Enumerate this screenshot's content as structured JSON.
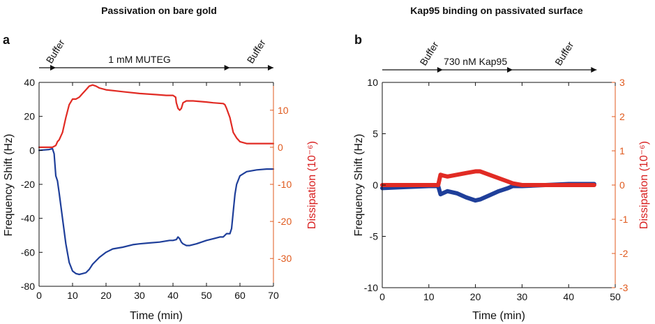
{
  "chart_data": [
    {
      "type": "line",
      "panel": "a",
      "title": "Passivation on bare gold",
      "xlabel": "Time (min)",
      "ylabel": "Frequency Shift (Hz)",
      "y2label": "Dissipation (10⁻⁶)",
      "xlim": [
        0,
        70
      ],
      "ylim": [
        -80,
        40
      ],
      "y2lim": [
        -37.5,
        17.5
      ],
      "xticks": [
        0,
        10,
        20,
        30,
        40,
        50,
        60,
        70
      ],
      "yticks": [
        -80,
        -60,
        -40,
        -20,
        0,
        20,
        40
      ],
      "y2ticks": [
        -30,
        -20,
        -10,
        0,
        10
      ],
      "grid": false,
      "annotations": [
        {
          "label": "Buffer",
          "x": 2,
          "rotated": true
        },
        {
          "label": "1 mM MUTEG",
          "x": 30,
          "rotated": false
        },
        {
          "label": "Buffer",
          "x": 62,
          "rotated": true
        }
      ],
      "arrow": {
        "start": 0,
        "end": 70,
        "marks": [
          5,
          57
        ]
      },
      "series": [
        {
          "name": "",
          "axis": "left",
          "color": "#1f3f9a",
          "x": [
            0,
            3,
            4,
            4.5,
            5,
            5.5,
            6,
            7,
            8,
            9,
            10,
            11,
            12,
            13,
            14,
            15,
            16,
            17,
            18,
            20,
            22,
            25,
            28,
            30,
            33,
            36,
            39,
            40,
            41,
            41.5,
            42,
            42.5,
            43,
            44,
            45,
            47,
            50,
            52,
            54,
            55,
            55.5,
            56,
            57,
            57.5,
            58,
            58.5,
            59,
            60,
            62,
            65,
            68,
            70
          ],
          "y": [
            0,
            0.5,
            1,
            -2,
            -15,
            -18,
            -25,
            -40,
            -55,
            -66,
            -71,
            -72.5,
            -73,
            -72.5,
            -72,
            -70,
            -67,
            -65,
            -63,
            -60,
            -58,
            -57,
            -55.5,
            -55,
            -54.5,
            -54,
            -53,
            -53,
            -52.5,
            -51,
            -52,
            -54,
            -55,
            -56,
            -56,
            -55,
            -53,
            -52,
            -51,
            -51,
            -50,
            -49,
            -49,
            -46,
            -36,
            -26,
            -20,
            -15,
            -12.5,
            -11.5,
            -11,
            -11
          ]
        },
        {
          "name": "",
          "axis": "right",
          "color": "#e12b24",
          "x": [
            0,
            4,
            5,
            5.5,
            6,
            7,
            8,
            9,
            10,
            11,
            12,
            13,
            14,
            15,
            16,
            17,
            18,
            20,
            25,
            30,
            35,
            38,
            40,
            40.8,
            41,
            41.5,
            42,
            42.5,
            43,
            44,
            46,
            50,
            52,
            55,
            55.5,
            56,
            57,
            57.5,
            58,
            59,
            60,
            62,
            65,
            70
          ],
          "y": [
            0,
            0,
            0.5,
            1.5,
            2,
            4,
            8,
            11.5,
            13,
            13,
            13.5,
            14.5,
            15.5,
            16.5,
            16.8,
            16.5,
            16,
            15.5,
            15,
            14.5,
            14.2,
            14,
            14,
            13.5,
            12,
            10.5,
            10,
            10.5,
            12,
            12.5,
            12.5,
            12.2,
            12,
            11.8,
            11.5,
            10.5,
            8,
            6,
            4,
            2.5,
            1.5,
            1,
            1,
            1
          ]
        }
      ]
    },
    {
      "type": "line",
      "panel": "b",
      "title": "Kap95 binding on passivated surface",
      "xlabel": "Time (min)",
      "ylabel": "Frequency Shift (Hz)",
      "y2label": "Dissipation (10⁻⁶)",
      "xlim": [
        0,
        50
      ],
      "ylim": [
        -10,
        10
      ],
      "y2lim": [
        -3,
        3
      ],
      "xticks": [
        0,
        10,
        20,
        30,
        40,
        50
      ],
      "yticks": [
        -10,
        -5,
        0,
        5,
        10
      ],
      "y2ticks": [
        -3,
        -2,
        -1,
        0,
        1,
        2,
        3
      ],
      "grid": false,
      "annotations": [
        {
          "label": "Buffer",
          "x": 8,
          "rotated": true
        },
        {
          "label": "730 nM Kap95",
          "x": 20,
          "rotated": false
        },
        {
          "label": "Buffer",
          "x": 37,
          "rotated": true
        }
      ],
      "arrow": {
        "start": 0,
        "end": 46,
        "marks": [
          13,
          28
        ]
      },
      "series": [
        {
          "name": "",
          "axis": "left",
          "color": "#1f3f9a",
          "x": [
            0,
            5,
            10,
            12,
            12.5,
            13,
            14,
            16,
            18,
            20,
            21,
            23,
            25,
            27,
            28,
            30,
            35,
            40,
            45.5
          ],
          "y": [
            -0.3,
            -0.2,
            -0.1,
            -0.1,
            -0.9,
            -0.8,
            -0.6,
            -0.8,
            -1.2,
            -1.5,
            -1.4,
            -1.0,
            -0.6,
            -0.3,
            -0.1,
            -0.1,
            0,
            0.1,
            0.1
          ]
        },
        {
          "name": "",
          "axis": "right",
          "color": "#e12b24",
          "x": [
            0,
            5,
            10,
            12,
            12.5,
            13,
            14,
            16,
            18,
            20,
            21,
            23,
            25,
            27,
            28,
            30,
            35,
            40,
            45.5
          ],
          "y": [
            0,
            0,
            0,
            0,
            0.3,
            0.28,
            0.25,
            0.3,
            0.35,
            0.4,
            0.4,
            0.3,
            0.2,
            0.1,
            0.05,
            0,
            0,
            0,
            0
          ]
        }
      ]
    }
  ]
}
